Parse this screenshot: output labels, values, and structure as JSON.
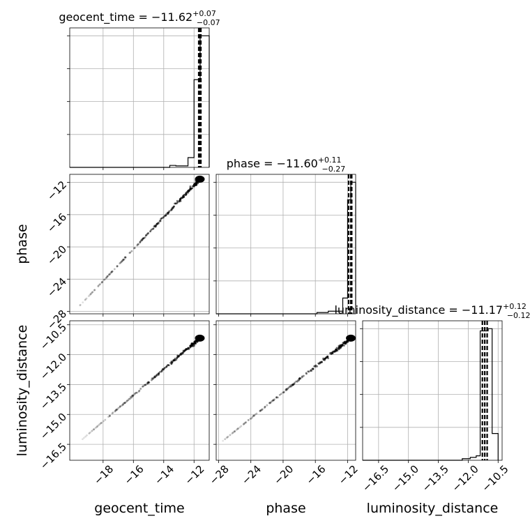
{
  "chart_data": {
    "type": "corner",
    "parameters": [
      "geocent_time",
      "phase",
      "luminosity_distance"
    ],
    "axis_labels": {
      "geocent_time": "geocent_time",
      "phase": "phase",
      "luminosity_distance": "luminosity_distance"
    },
    "ranges": {
      "geocent_time": [
        -20.2,
        -11.0
      ],
      "phase": [
        -28.3,
        -11.0
      ],
      "luminosity_distance": [
        -17.3,
        -10.3
      ]
    },
    "ticks": {
      "geocent_time": [
        -18,
        -16,
        -14,
        -12
      ],
      "phase": [
        -28,
        -24,
        -20,
        -16,
        -12
      ],
      "luminosity_distance": [
        -16.5,
        -15.0,
        -13.5,
        -12.0,
        -10.5
      ]
    },
    "tick_labels": {
      "geocent_time": [
        "−18",
        "−16",
        "−14",
        "−12"
      ],
      "phase": [
        "−28",
        "−24",
        "−20",
        "−16",
        "−12"
      ],
      "luminosity_distance": [
        "−16.5",
        "−15.0",
        "−13.5",
        "−12.0",
        "−10.5"
      ]
    },
    "titles": [
      {
        "param": "geocent_time",
        "main": "geocent_time = −11.62",
        "plus": "+0.07",
        "minus": "−0.07"
      },
      {
        "param": "phase",
        "main": "phase = −11.60",
        "plus": "+0.11",
        "minus": "−0.27"
      },
      {
        "param": "luminosity_distance",
        "main": "luminosity_distance = −11.17",
        "plus": "+0.12",
        "minus": "−0.12"
      }
    ],
    "quantiles": {
      "geocent_time": [
        -11.69,
        -11.62,
        -11.55
      ],
      "phase": [
        -11.87,
        -11.6,
        -11.49
      ],
      "luminosity_distance": [
        -11.29,
        -11.17,
        -11.05
      ]
    },
    "histograms": {
      "geocent_time": {
        "edges": [
          -20.2,
          -13.6,
          -13.2,
          -12.4,
          -12.0,
          -11.6,
          -11.0
        ],
        "counts": [
          0,
          0.4,
          0.3,
          2.0,
          18.0,
          27.0
        ]
      },
      "phase": {
        "edges": [
          -28.3,
          -15.8,
          -14.4,
          -12.6,
          -12.0,
          -11.6,
          -11.0
        ],
        "counts": [
          0,
          0.3,
          0.6,
          3.6,
          26.0,
          30.0
        ]
      },
      "luminosity_distance": {
        "edges": [
          -17.3,
          -12.3,
          -11.9,
          -11.6,
          -11.4,
          -11.0,
          -10.8,
          -10.5
        ],
        "counts": [
          0,
          0.7,
          1.3,
          2.0,
          58.0,
          59.0,
          12.0
        ]
      }
    },
    "grid": true,
    "grid_color": "#b0b0b0",
    "line_color": "#000000"
  }
}
